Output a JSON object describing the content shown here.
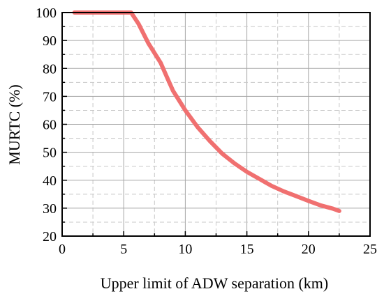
{
  "chart_data": {
    "type": "line",
    "title": "",
    "xlabel": "Upper limit of ADW separation (km)",
    "ylabel": "MURTC (%)",
    "xlim": [
      0,
      25
    ],
    "ylim": [
      20,
      100
    ],
    "xticks": [
      0,
      5,
      10,
      15,
      20,
      25
    ],
    "yticks": [
      20,
      30,
      40,
      50,
      60,
      70,
      80,
      90,
      100
    ],
    "grid": true,
    "series": [
      {
        "color": "#f07070",
        "x": [
          1,
          2,
          3,
          4,
          5,
          5.6,
          6.2,
          7,
          8,
          8.5,
          9,
          10,
          11,
          12,
          13,
          14,
          15,
          16,
          17,
          18,
          19,
          20,
          21,
          22,
          22.5
        ],
        "y": [
          100,
          100,
          100,
          100,
          100,
          100,
          96,
          89,
          82,
          77,
          72,
          65,
          59,
          54,
          49.5,
          46,
          43,
          40.5,
          38,
          36,
          34.3,
          32.6,
          31,
          29.8,
          29
        ]
      }
    ]
  }
}
